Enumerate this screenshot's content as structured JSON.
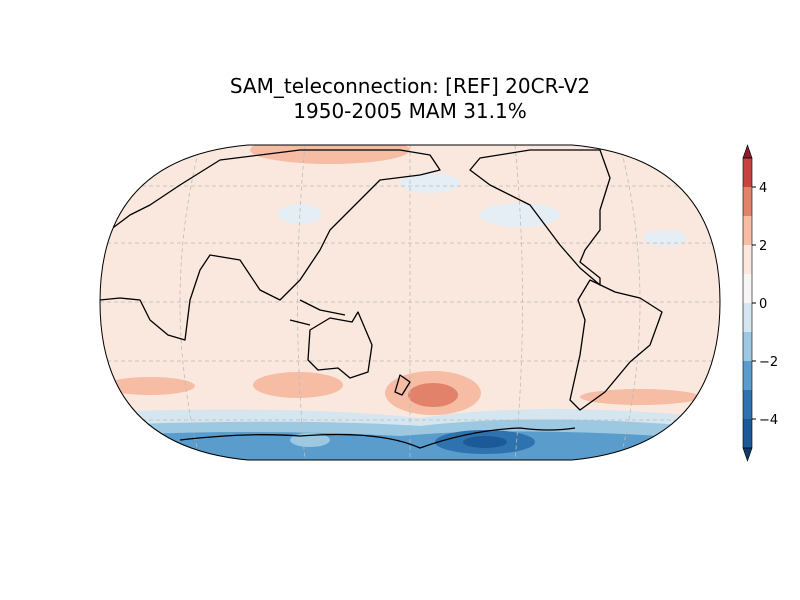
{
  "chart_data": {
    "type": "contour-map",
    "title": [
      "SAM_teleconnection: [REF] 20CR-V2",
      "1950-2005 MAM 31.1%"
    ],
    "colorbar": {
      "levels": [
        -5,
        -4,
        -3,
        -2,
        -1,
        0,
        1,
        2,
        3,
        4,
        5
      ],
      "colors": [
        "#1b5a96",
        "#2f72b0",
        "#5a9ccb",
        "#9cc9e1",
        "#d5e6f0",
        "#f7f6f5",
        "#fae8de",
        "#f6bca4",
        "#e2826a",
        "#c8433f"
      ],
      "extend_colors": [
        "#0d3b6b",
        "#8b1a2c"
      ],
      "lim": [
        -5,
        5
      ],
      "ticks": [
        {
          "value": -4,
          "label": "−4"
        },
        {
          "value": -2,
          "label": "−2"
        },
        0,
        2,
        4
      ]
    }
  }
}
